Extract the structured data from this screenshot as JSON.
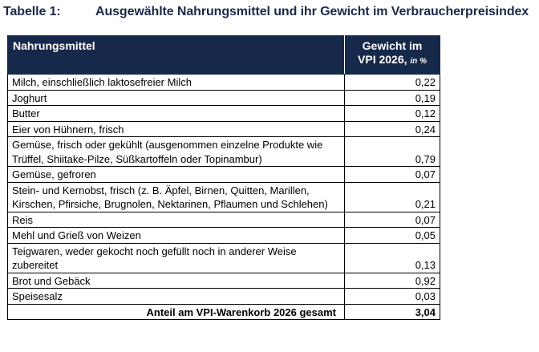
{
  "caption": {
    "number": "Tabelle 1:",
    "title": "Ausgewählte Nahrungsmittel und ihr Gewicht im Verbraucherpreisindex"
  },
  "table": {
    "headers": {
      "name": "Nahrungsmittel",
      "weight_line1": "Gewicht im",
      "weight_line2": "VPI 2026,",
      "weight_unit": "in %"
    },
    "rows": [
      {
        "name": "Milch, einschließlich laktosefreier Milch",
        "value": "0,22"
      },
      {
        "name": "Joghurt",
        "value": "0,19"
      },
      {
        "name": "Butter",
        "value": "0,12"
      },
      {
        "name": "Eier von Hühnern, frisch",
        "value": "0,24"
      },
      {
        "name": "Gemüse, frisch oder gekühlt (ausgenommen einzelne Produkte wie Trüffel, Shiitake-Pilze, Süßkartoffeln oder Topinambur)",
        "value": "0,79"
      },
      {
        "name": "Gemüse, gefroren",
        "value": "0,07"
      },
      {
        "name": "Stein- und Kernobst, frisch (z. B. Äpfel, Birnen, Quitten, Marillen, Kirschen, Pfirsiche, Brugnolen, Nektarinen, Pflaumen und Schlehen)",
        "value": "0,21"
      },
      {
        "name": "Reis",
        "value": "0,07"
      },
      {
        "name": "Mehl und Grieß von Weizen",
        "value": "0,05"
      },
      {
        "name": "Teigwaren, weder gekocht noch gefüllt noch in anderer Weise zubereitet",
        "value": "0,13"
      },
      {
        "name": "Brot und Gebäck",
        "value": "0,92"
      },
      {
        "name": "Speisesalz",
        "value": "0,03"
      }
    ],
    "total": {
      "label": "Anteil am VPI-Warenkorb 2026 gesamt",
      "value": "3,04"
    }
  },
  "colors": {
    "header_background": "#16294b",
    "header_text": "#ffffff",
    "caption_text": "#1b2a4a"
  }
}
